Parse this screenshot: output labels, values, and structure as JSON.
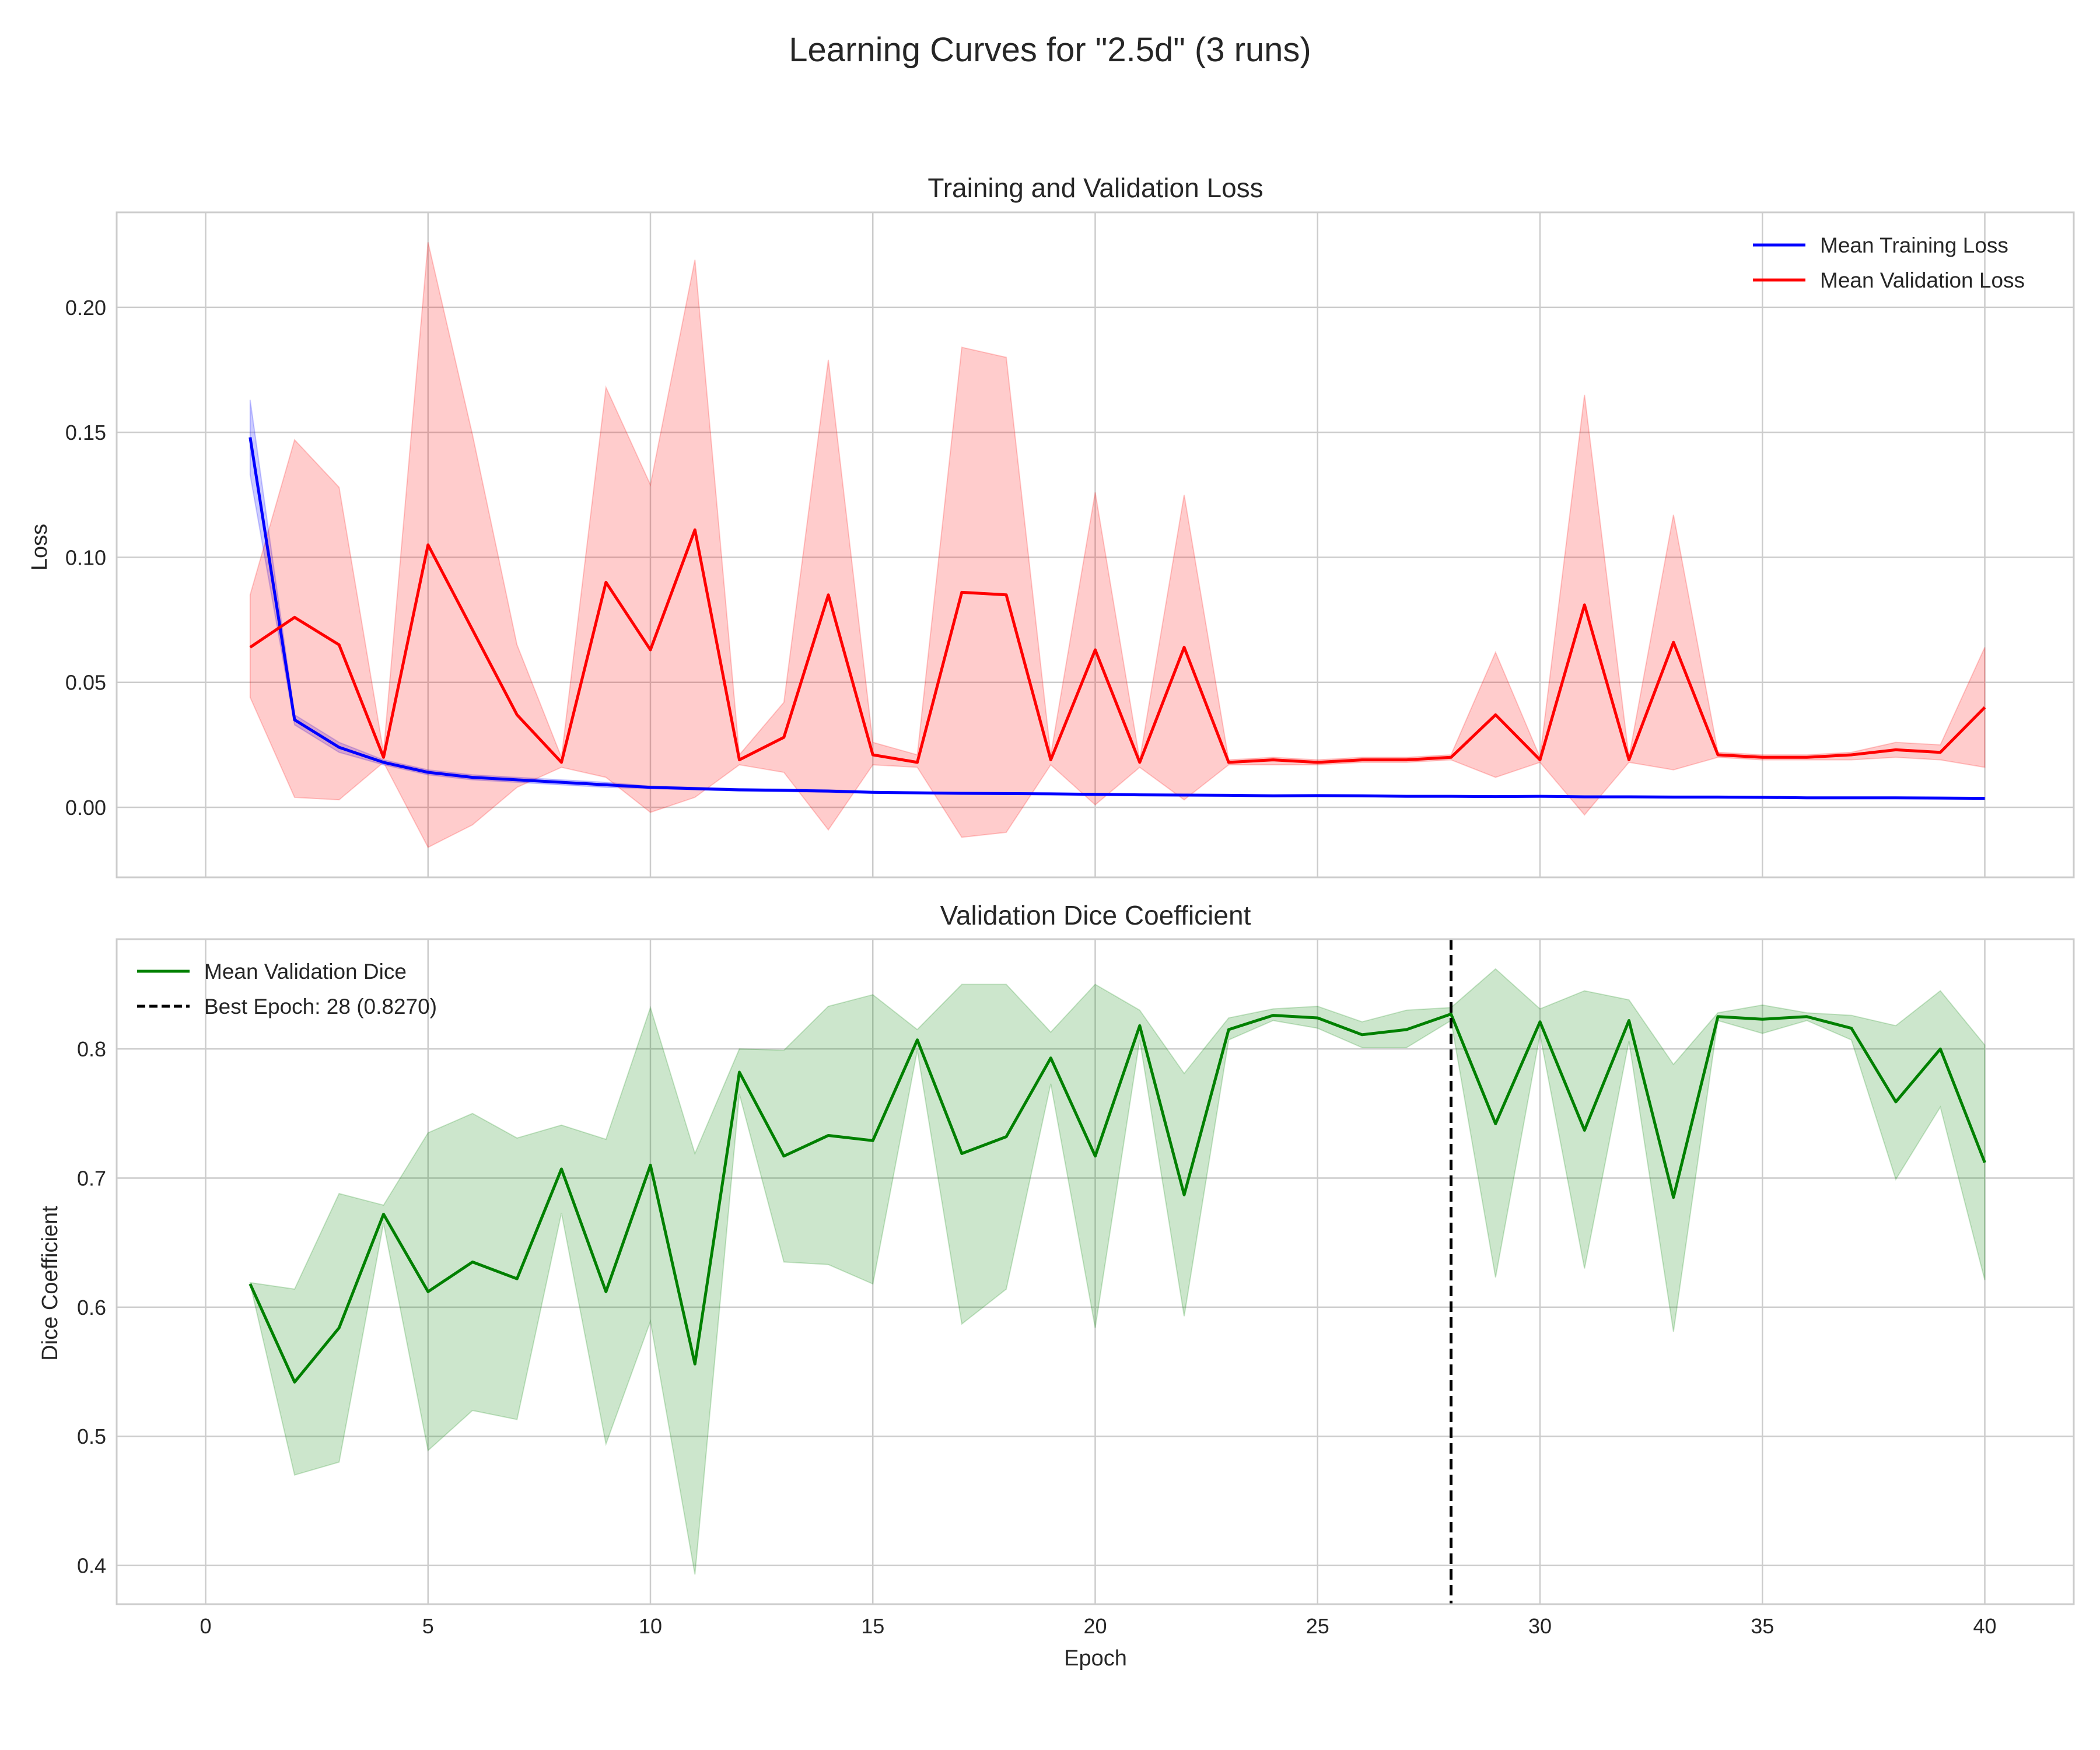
{
  "figure_title": "Learning Curves for \"2.5d\" (3 runs)",
  "chart_data": [
    {
      "type": "line",
      "title": "Training and Validation Loss",
      "xlabel": "",
      "ylabel": "Loss",
      "xlim": [
        -2,
        42
      ],
      "ylim": [
        -0.028,
        0.238
      ],
      "x_ticks": [
        0,
        5,
        10,
        15,
        20,
        25,
        30,
        35,
        40
      ],
      "x_tick_labels": [
        "",
        "",
        "",
        "",
        "",
        "",
        "",
        "",
        ""
      ],
      "y_ticks": [
        0.0,
        0.05,
        0.1,
        0.15,
        0.2
      ],
      "y_tick_labels": [
        "0.00",
        "0.05",
        "0.10",
        "0.15",
        "0.20"
      ],
      "grid": true,
      "legend_position": "top-right",
      "x": [
        1,
        2,
        3,
        4,
        5,
        6,
        7,
        8,
        9,
        10,
        11,
        12,
        13,
        14,
        15,
        16,
        17,
        18,
        19,
        20,
        21,
        22,
        23,
        24,
        25,
        26,
        27,
        28,
        29,
        30,
        31,
        32,
        33,
        34,
        35,
        36,
        37,
        38,
        39,
        40
      ],
      "series": [
        {
          "name": "Mean Training Loss",
          "color": "#0000ff",
          "values": [
            0.148,
            0.035,
            0.024,
            0.018,
            0.014,
            0.012,
            0.011,
            0.01,
            0.009,
            0.008,
            0.0075,
            0.007,
            0.0068,
            0.0065,
            0.006,
            0.0058,
            0.0056,
            0.0055,
            0.0054,
            0.0052,
            0.005,
            0.0049,
            0.0048,
            0.0046,
            0.0047,
            0.0046,
            0.0044,
            0.0044,
            0.0043,
            0.0044,
            0.0042,
            0.0042,
            0.0041,
            0.0041,
            0.004,
            0.0038,
            0.0038,
            0.0038,
            0.0037,
            0.0036
          ],
          "band_lower": [
            0.133,
            0.033,
            0.022,
            0.017,
            0.013,
            0.011,
            0.01,
            0.009,
            0.008,
            0.0075,
            0.007,
            0.0065,
            0.0063,
            0.006,
            0.0056,
            0.0055,
            0.0053,
            0.0052,
            0.0051,
            0.0049,
            0.0047,
            0.0046,
            0.0045,
            0.0043,
            0.0044,
            0.0043,
            0.0041,
            0.0041,
            0.004,
            0.0041,
            0.0039,
            0.0039,
            0.0038,
            0.0038,
            0.0037,
            0.0035,
            0.0035,
            0.0035,
            0.0034,
            0.0033
          ],
          "band_upper": [
            0.163,
            0.037,
            0.026,
            0.019,
            0.015,
            0.013,
            0.012,
            0.011,
            0.01,
            0.0085,
            0.008,
            0.0075,
            0.0073,
            0.007,
            0.0064,
            0.0061,
            0.0059,
            0.0058,
            0.0057,
            0.0055,
            0.0053,
            0.0052,
            0.0051,
            0.0049,
            0.005,
            0.0049,
            0.0047,
            0.0047,
            0.0046,
            0.0047,
            0.0045,
            0.0045,
            0.0044,
            0.0044,
            0.0043,
            0.0041,
            0.0041,
            0.0041,
            0.004,
            0.0039
          ]
        },
        {
          "name": "Mean Validation Loss",
          "color": "#ff0000",
          "values": [
            0.064,
            0.076,
            0.065,
            0.02,
            0.105,
            0.071,
            0.037,
            0.018,
            0.09,
            0.063,
            0.111,
            0.019,
            0.028,
            0.085,
            0.021,
            0.018,
            0.086,
            0.085,
            0.019,
            0.063,
            0.018,
            0.064,
            0.018,
            0.019,
            0.018,
            0.019,
            0.019,
            0.02,
            0.037,
            0.019,
            0.081,
            0.019,
            0.066,
            0.021,
            0.02,
            0.02,
            0.021,
            0.023,
            0.022,
            0.04
          ],
          "band_lower": [
            0.044,
            0.004,
            0.003,
            0.018,
            -0.016,
            -0.007,
            0.008,
            0.016,
            0.012,
            -0.002,
            0.004,
            0.017,
            0.014,
            -0.009,
            0.017,
            0.016,
            -0.012,
            -0.01,
            0.017,
            0.001,
            0.016,
            0.003,
            0.017,
            0.017,
            0.017,
            0.018,
            0.018,
            0.019,
            0.012,
            0.018,
            -0.003,
            0.018,
            0.015,
            0.02,
            0.019,
            0.019,
            0.019,
            0.02,
            0.019,
            0.016
          ],
          "band_upper": [
            0.085,
            0.147,
            0.128,
            0.022,
            0.226,
            0.149,
            0.065,
            0.02,
            0.168,
            0.129,
            0.219,
            0.021,
            0.042,
            0.179,
            0.026,
            0.021,
            0.184,
            0.18,
            0.021,
            0.126,
            0.019,
            0.125,
            0.019,
            0.02,
            0.019,
            0.02,
            0.02,
            0.021,
            0.062,
            0.02,
            0.165,
            0.02,
            0.117,
            0.022,
            0.021,
            0.021,
            0.022,
            0.026,
            0.025,
            0.064
          ]
        }
      ]
    },
    {
      "type": "line",
      "title": "Validation Dice Coefficient",
      "xlabel": "Epoch",
      "ylabel": "Dice Coefficient",
      "xlim": [
        -2,
        42
      ],
      "ylim": [
        0.37,
        0.885
      ],
      "x_ticks": [
        0,
        5,
        10,
        15,
        20,
        25,
        30,
        35,
        40
      ],
      "x_tick_labels": [
        "0",
        "5",
        "10",
        "15",
        "20",
        "25",
        "30",
        "35",
        "40"
      ],
      "y_ticks": [
        0.4,
        0.5,
        0.6,
        0.7,
        0.8
      ],
      "y_tick_labels": [
        "0.4",
        "0.5",
        "0.6",
        "0.7",
        "0.8"
      ],
      "grid": true,
      "legend_position": "top-left",
      "x": [
        1,
        2,
        3,
        4,
        5,
        6,
        7,
        8,
        9,
        10,
        11,
        12,
        13,
        14,
        15,
        16,
        17,
        18,
        19,
        20,
        21,
        22,
        23,
        24,
        25,
        26,
        27,
        28,
        29,
        30,
        31,
        32,
        33,
        34,
        35,
        36,
        37,
        38,
        39,
        40
      ],
      "series": [
        {
          "name": "Mean Validation Dice",
          "color": "#008000",
          "values": [
            0.618,
            0.542,
            0.584,
            0.672,
            0.612,
            0.635,
            0.622,
            0.707,
            0.612,
            0.71,
            0.556,
            0.782,
            0.717,
            0.733,
            0.729,
            0.807,
            0.719,
            0.732,
            0.793,
            0.717,
            0.818,
            0.687,
            0.815,
            0.826,
            0.824,
            0.811,
            0.815,
            0.827,
            0.742,
            0.821,
            0.737,
            0.822,
            0.685,
            0.825,
            0.823,
            0.825,
            0.816,
            0.759,
            0.8,
            0.712
          ],
          "band_lower": [
            0.618,
            0.47,
            0.48,
            0.665,
            0.489,
            0.52,
            0.513,
            0.673,
            0.494,
            0.589,
            0.393,
            0.765,
            0.635,
            0.633,
            0.618,
            0.799,
            0.587,
            0.614,
            0.773,
            0.584,
            0.807,
            0.593,
            0.807,
            0.822,
            0.816,
            0.801,
            0.801,
            0.822,
            0.623,
            0.811,
            0.63,
            0.806,
            0.581,
            0.822,
            0.812,
            0.822,
            0.807,
            0.699,
            0.755,
            0.621
          ],
          "band_upper": [
            0.619,
            0.614,
            0.688,
            0.679,
            0.735,
            0.75,
            0.731,
            0.741,
            0.73,
            0.832,
            0.719,
            0.8,
            0.799,
            0.833,
            0.842,
            0.815,
            0.85,
            0.85,
            0.813,
            0.85,
            0.83,
            0.781,
            0.824,
            0.831,
            0.833,
            0.821,
            0.83,
            0.832,
            0.862,
            0.831,
            0.845,
            0.838,
            0.788,
            0.828,
            0.834,
            0.828,
            0.826,
            0.818,
            0.845,
            0.803
          ]
        }
      ],
      "best_epoch": {
        "label": "Best Epoch: 28 (0.8270)",
        "epoch": 28,
        "value": 0.827,
        "color": "#000000"
      }
    }
  ]
}
